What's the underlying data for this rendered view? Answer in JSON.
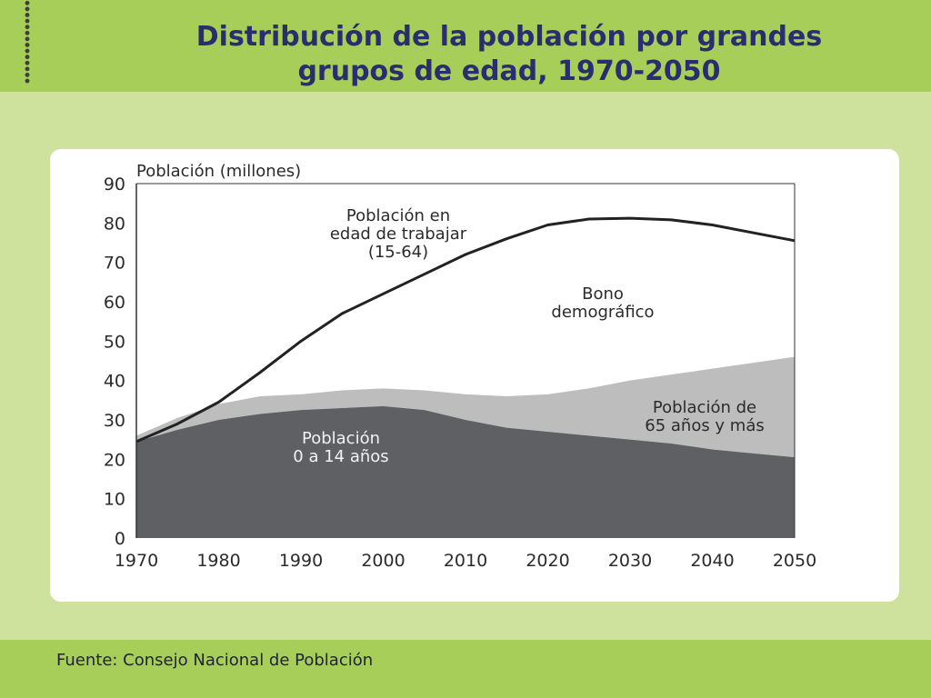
{
  "slide": {
    "title_line1": "Distribución de la población por grandes",
    "title_line2": "grupos de edad, 1970-2050",
    "source": "Fuente: Consejo Nacional de Población"
  },
  "colors": {
    "header_band": "#a8ce5a",
    "background": "#cfe29d",
    "title": "#2a2d6e",
    "area_0_14": "#5f6063",
    "area_65_plus": "#bdbdbd",
    "working_age_line": "#222222"
  },
  "chart_data": {
    "type": "area",
    "ylabel": "Población (millones)",
    "xlabel": "",
    "xlim": [
      1970,
      2050
    ],
    "ylim": [
      0,
      90
    ],
    "x_ticks": [
      "1970",
      "1980",
      "1990",
      "2000",
      "2010",
      "2020",
      "2030",
      "2040",
      "2050"
    ],
    "y_ticks": [
      "0",
      "10",
      "20",
      "30",
      "40",
      "50",
      "60",
      "70",
      "80",
      "90"
    ],
    "grid": false,
    "x": [
      1970,
      1975,
      1980,
      1985,
      1990,
      1995,
      2000,
      2005,
      2010,
      2015,
      2020,
      2025,
      2030,
      2035,
      2040,
      2045,
      2050
    ],
    "series": [
      {
        "name": "Población 0 a 14 años",
        "type": "area",
        "values": [
          24.5,
          27.5,
          30.0,
          31.5,
          32.5,
          33.0,
          33.5,
          32.5,
          30.0,
          28.0,
          27.0,
          26.0,
          25.0,
          24.0,
          22.5,
          21.5,
          20.5
        ]
      },
      {
        "name": "Población de 65 años y más",
        "type": "area_top",
        "values": [
          26.0,
          30.5,
          34.0,
          36.0,
          36.5,
          37.5,
          38.0,
          37.5,
          36.5,
          36.0,
          36.5,
          38.0,
          40.0,
          41.5,
          43.0,
          44.5,
          46.0
        ]
      },
      {
        "name": "Población en edad de trabajar (15-64)",
        "type": "line",
        "values": [
          24.5,
          29.0,
          34.5,
          42.0,
          50.0,
          57.0,
          62.0,
          67.0,
          72.0,
          76.0,
          79.5,
          81.0,
          81.2,
          80.8,
          79.5,
          77.5,
          75.5
        ]
      }
    ],
    "annotations": [
      {
        "name": "working_age",
        "lines": [
          "Población en",
          "edad de trabajar",
          "(15-64)"
        ]
      },
      {
        "name": "bonus",
        "lines": [
          "Bono",
          "demográfico"
        ]
      },
      {
        "name": "elderly",
        "lines": [
          "Población de",
          "65 años y más"
        ]
      },
      {
        "name": "children",
        "lines": [
          "Población",
          "0 a 14 años"
        ]
      }
    ]
  }
}
